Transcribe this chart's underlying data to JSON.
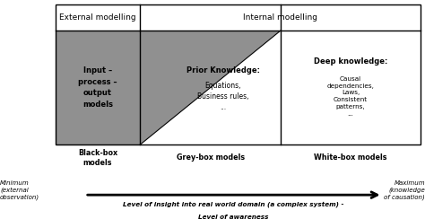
{
  "fig_width": 4.74,
  "fig_height": 2.44,
  "dpi": 100,
  "bg_color": "#ffffff",
  "ext_mod_label": "External modelling",
  "int_mod_label": "Internal modelling",
  "dark_gray": "#909090",
  "white": "#ffffff",
  "cell1_text_bold": "Input –\nprocess –\noutput\nmodels",
  "cell2_title": "Prior Knowledge:",
  "cell2_body": "Equations,\nBusiness rules,\n...",
  "cell3_title": "Deep knowledge:",
  "cell3_body": "Causal\ndependencies,\nLaws,\nConsistent\npatterns,\n...",
  "label_bb": "Black-box\nmodels",
  "label_gb": "Grey-box models",
  "label_wb": "White-box models",
  "arrow_label_line1": "Level of insight into real world domain (a complex system) -",
  "arrow_label_line2": "Level of awareness",
  "min_label": "Minimum\n(external\nobservation)",
  "max_label": "Maximum\n(knowledge\nof causation)"
}
